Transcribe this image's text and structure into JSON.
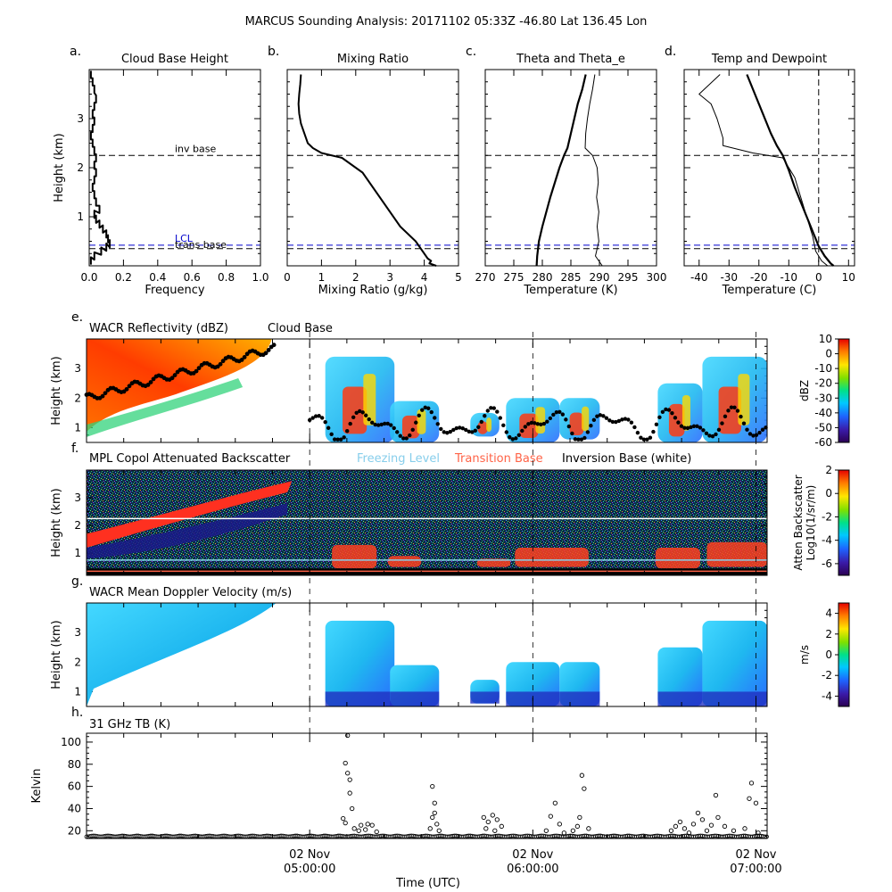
{
  "figure": {
    "title": "MARCUS Sounding Analysis: 20171102 05:33Z    -46.80 Lat  136.45 Lon",
    "x_axis_label": "Time (UTC)"
  },
  "chart_data": [
    {
      "id": "a",
      "panel_letter": "a.",
      "type": "line",
      "title": "Cloud Base Height",
      "xlabel": "Frequency",
      "ylabel": "Height (km)",
      "xlim": [
        0,
        1.0
      ],
      "ylim": [
        0,
        4
      ],
      "xticks": [
        "0.0",
        "0.2",
        "0.4",
        "0.6",
        "0.8",
        "1.0"
      ],
      "yticks": [
        "1",
        "2",
        "3"
      ],
      "series": [
        {
          "x": [
            0.01,
            0.02,
            0.03,
            0.04,
            0.03,
            0.02,
            0.03,
            0.02,
            0.01,
            0.02,
            0.03,
            0.04,
            0.03,
            0.04,
            0.03,
            0.02,
            0.03,
            0.04,
            0.06,
            0.03,
            0.04,
            0.06,
            0.08,
            0.1,
            0.11,
            0.12,
            0.1,
            0.07,
            0.03,
            0.01
          ],
          "y": [
            3.9,
            3.75,
            3.6,
            3.4,
            3.25,
            3.1,
            2.95,
            2.8,
            2.65,
            2.5,
            2.35,
            2.2,
            2.05,
            1.9,
            1.75,
            1.6,
            1.45,
            1.3,
            1.15,
            1.05,
            0.95,
            0.85,
            0.75,
            0.65,
            0.55,
            0.45,
            0.38,
            0.3,
            0.2,
            0.1
          ]
        }
      ],
      "annotations": [
        {
          "label": "inv base",
          "y": 2.25,
          "color": "#000000"
        },
        {
          "label": "LCL",
          "y": 0.42,
          "color": "#0000cc"
        },
        {
          "label": "trans base",
          "y": 0.35,
          "color": "#000000"
        }
      ]
    },
    {
      "id": "b",
      "panel_letter": "b.",
      "type": "line",
      "title": "Mixing Ratio",
      "xlabel": "Mixing Ratio (g/kg)",
      "xlim": [
        0,
        5
      ],
      "ylim": [
        0,
        4
      ],
      "xticks": [
        "0",
        "1",
        "2",
        "3",
        "4",
        "5"
      ],
      "series": [
        {
          "x": [
            0.4,
            0.38,
            0.35,
            0.33,
            0.35,
            0.4,
            0.5,
            0.6,
            0.75,
            1.0,
            1.3,
            1.6,
            1.8,
            2.2,
            2.4,
            2.6,
            2.8,
            3.0,
            3.15,
            3.3,
            3.45,
            3.6,
            3.75,
            3.85,
            3.95,
            4.05,
            4.1,
            4.2,
            4.15,
            4.35
          ],
          "y": [
            3.9,
            3.7,
            3.5,
            3.3,
            3.1,
            2.9,
            2.7,
            2.5,
            2.4,
            2.3,
            2.25,
            2.2,
            2.1,
            1.9,
            1.7,
            1.5,
            1.3,
            1.1,
            0.95,
            0.8,
            0.7,
            0.6,
            0.5,
            0.4,
            0.3,
            0.2,
            0.15,
            0.1,
            0.05,
            0.0
          ]
        }
      ],
      "annotations": [
        {
          "y": 2.25,
          "color": "#000000"
        },
        {
          "y": 0.42,
          "color": "#0000cc"
        },
        {
          "y": 0.35,
          "color": "#000000"
        }
      ]
    },
    {
      "id": "c",
      "panel_letter": "c.",
      "type": "line",
      "title": "Theta and Theta_e",
      "xlabel": "Temperature (K)",
      "xlim": [
        270,
        300
      ],
      "ylim": [
        0,
        4
      ],
      "xticks": [
        "270",
        "275",
        "280",
        "285",
        "290",
        "295",
        "300"
      ],
      "series": [
        {
          "x": [
            287.6,
            287.0,
            286.2,
            285.6,
            285.0,
            284.4,
            283.8,
            283.0,
            282.2,
            281.4,
            280.7,
            280.0,
            279.4,
            279.1,
            279.0
          ],
          "y": [
            3.9,
            3.6,
            3.3,
            3.0,
            2.7,
            2.4,
            2.25,
            2.0,
            1.7,
            1.4,
            1.1,
            0.8,
            0.5,
            0.2,
            0.0
          ]
        },
        {
          "x": [
            289.2,
            288.8,
            288.3,
            287.9,
            287.6,
            287.5,
            288.8,
            289.6,
            289.8,
            289.5,
            289.9,
            289.6,
            289.9,
            289.3,
            290.5
          ],
          "y": [
            3.9,
            3.6,
            3.3,
            3.0,
            2.7,
            2.4,
            2.25,
            2.0,
            1.7,
            1.4,
            1.1,
            0.8,
            0.5,
            0.2,
            0.0
          ]
        }
      ],
      "annotations": [
        {
          "y": 2.25,
          "color": "#000000"
        },
        {
          "y": 0.42,
          "color": "#0000cc"
        },
        {
          "y": 0.35,
          "color": "#000000"
        }
      ]
    },
    {
      "id": "d",
      "panel_letter": "d.",
      "type": "line",
      "title": "Temp and Dewpoint",
      "xlabel": "Temperature (C)",
      "xlim": [
        -45,
        12
      ],
      "ylim": [
        0,
        4
      ],
      "xticks": [
        "-40",
        "-30",
        "-20",
        "-10",
        "0",
        "10"
      ],
      "xtick_values": [
        -40,
        -30,
        -20,
        -10,
        0,
        10
      ],
      "series": [
        {
          "x": [
            -24,
            -22,
            -20,
            -18,
            -16,
            -14,
            -12,
            -10,
            -8,
            -6,
            -4,
            -2,
            0,
            2,
            4,
            5
          ],
          "y": [
            3.9,
            3.6,
            3.3,
            3.0,
            2.7,
            2.45,
            2.25,
            1.95,
            1.6,
            1.3,
            1.0,
            0.7,
            0.4,
            0.2,
            0.05,
            0.0
          ]
        },
        {
          "x": [
            -33,
            -40,
            -36,
            -34,
            -33,
            -32,
            -32,
            -22,
            -12,
            -8,
            -6,
            -4,
            -2,
            -1,
            1,
            3
          ],
          "y": [
            3.9,
            3.5,
            3.3,
            3.0,
            2.8,
            2.6,
            2.45,
            2.3,
            2.2,
            1.8,
            1.4,
            1.0,
            0.6,
            0.3,
            0.1,
            0.0
          ]
        }
      ],
      "annotations": [
        {
          "y": 2.25,
          "color": "#000000"
        },
        {
          "y": 0.42,
          "color": "#0000cc"
        },
        {
          "y": 0.35,
          "color": "#000000"
        }
      ]
    },
    {
      "id": "e",
      "panel_letter": "e.",
      "type": "heatmap",
      "title": "WACR Reflectivity (dBZ)",
      "legend": "Cloud Base",
      "ylabel": "Height (km)",
      "ylim": [
        0.5,
        4.0
      ],
      "yticks": [
        "1",
        "2",
        "3"
      ],
      "colorbar": {
        "label": "dBZ",
        "range": [
          -60,
          10
        ],
        "ticks": [
          "10",
          "0",
          "-10",
          "-20",
          "-30",
          "-40",
          "-50",
          "-60"
        ]
      }
    },
    {
      "id": "f",
      "panel_letter": "f.",
      "type": "heatmap",
      "title": "MPL Copol Attenuated Backscatter",
      "legend": [
        {
          "label": "Freezing Level",
          "color": "#87ceeb"
        },
        {
          "label": "Transition Base",
          "color": "#ff6347"
        },
        {
          "label": "Inversion Base (white)",
          "color": "#000000"
        }
      ],
      "ylabel": "Height (km)",
      "ylim": [
        0.2,
        4.0
      ],
      "yticks": [
        "1",
        "2",
        "3"
      ],
      "lines": [
        {
          "kind": "inversion",
          "y": 2.25,
          "color": "#ffffff"
        },
        {
          "kind": "freezing",
          "y": 0.75,
          "color": "#87ceeb"
        },
        {
          "kind": "transition",
          "y": 0.35,
          "color": "#ff6347"
        }
      ],
      "colorbar": {
        "label": "Atten Backscatter\nLog10(1/sr/m)",
        "range": [
          -7,
          2
        ],
        "ticks": [
          "2",
          "0",
          "-2",
          "-4",
          "-6"
        ]
      }
    },
    {
      "id": "g",
      "panel_letter": "g.",
      "type": "heatmap",
      "title": "WACR Mean Doppler Velocity (m/s)",
      "ylabel": "Height (km)",
      "ylim": [
        0.5,
        4.0
      ],
      "yticks": [
        "1",
        "2",
        "3"
      ],
      "colorbar": {
        "label": "m/s",
        "range": [
          -5,
          5
        ],
        "ticks": [
          "4",
          "2",
          "0",
          "-2",
          "-4"
        ]
      }
    },
    {
      "id": "h",
      "panel_letter": "h.",
      "type": "scatter",
      "title": "31 GHz TB (K)",
      "ylabel": "Kelvin",
      "xlabel": "Time (UTC)",
      "ylim": [
        13,
        108
      ],
      "yticks": [
        "20",
        "40",
        "60",
        "80",
        "100"
      ],
      "time_range_hours": [
        4.0,
        7.05
      ],
      "xticks": [
        {
          "t": 5.0,
          "line1": "02 Nov",
          "line2": "05:00:00"
        },
        {
          "t": 6.0,
          "line1": "02 Nov",
          "line2": "06:00:00"
        },
        {
          "t": 7.0,
          "line1": "02 Nov",
          "line2": "07:00:00"
        }
      ],
      "outliers": [
        {
          "t": 5.17,
          "v": 106
        },
        {
          "t": 5.16,
          "v": 81
        },
        {
          "t": 5.17,
          "v": 72
        },
        {
          "t": 5.18,
          "v": 66
        },
        {
          "t": 5.18,
          "v": 54
        },
        {
          "t": 5.19,
          "v": 40
        },
        {
          "t": 5.15,
          "v": 31
        },
        {
          "t": 5.16,
          "v": 27
        },
        {
          "t": 5.23,
          "v": 25
        },
        {
          "t": 5.26,
          "v": 26
        },
        {
          "t": 5.28,
          "v": 25
        },
        {
          "t": 5.2,
          "v": 22
        },
        {
          "t": 5.22,
          "v": 20
        },
        {
          "t": 5.25,
          "v": 21
        },
        {
          "t": 5.3,
          "v": 19
        },
        {
          "t": 5.55,
          "v": 60
        },
        {
          "t": 5.56,
          "v": 45
        },
        {
          "t": 5.56,
          "v": 36
        },
        {
          "t": 5.55,
          "v": 32
        },
        {
          "t": 5.57,
          "v": 26
        },
        {
          "t": 5.54,
          "v": 22
        },
        {
          "t": 5.58,
          "v": 20
        },
        {
          "t": 5.78,
          "v": 32
        },
        {
          "t": 5.8,
          "v": 28
        },
        {
          "t": 5.82,
          "v": 34
        },
        {
          "t": 5.84,
          "v": 30
        },
        {
          "t": 5.79,
          "v": 22
        },
        {
          "t": 5.83,
          "v": 20
        },
        {
          "t": 5.86,
          "v": 24
        },
        {
          "t": 6.1,
          "v": 45
        },
        {
          "t": 6.08,
          "v": 33
        },
        {
          "t": 6.12,
          "v": 26
        },
        {
          "t": 6.06,
          "v": 20
        },
        {
          "t": 6.22,
          "v": 70
        },
        {
          "t": 6.23,
          "v": 58
        },
        {
          "t": 6.21,
          "v": 32
        },
        {
          "t": 6.2,
          "v": 24
        },
        {
          "t": 6.18,
          "v": 20
        },
        {
          "t": 6.25,
          "v": 22
        },
        {
          "t": 6.14,
          "v": 18
        },
        {
          "t": 6.62,
          "v": 20
        },
        {
          "t": 6.64,
          "v": 24
        },
        {
          "t": 6.66,
          "v": 28
        },
        {
          "t": 6.68,
          "v": 22
        },
        {
          "t": 6.72,
          "v": 26
        },
        {
          "t": 6.74,
          "v": 36
        },
        {
          "t": 6.76,
          "v": 30
        },
        {
          "t": 6.8,
          "v": 25
        },
        {
          "t": 6.82,
          "v": 52
        },
        {
          "t": 6.83,
          "v": 32
        },
        {
          "t": 6.86,
          "v": 24
        },
        {
          "t": 6.9,
          "v": 20
        },
        {
          "t": 6.95,
          "v": 22
        },
        {
          "t": 6.98,
          "v": 63
        },
        {
          "t": 6.97,
          "v": 49
        },
        {
          "t": 7.0,
          "v": 45
        },
        {
          "t": 7.01,
          "v": 18
        },
        {
          "t": 6.7,
          "v": 18
        },
        {
          "t": 6.78,
          "v": 20
        }
      ]
    }
  ]
}
